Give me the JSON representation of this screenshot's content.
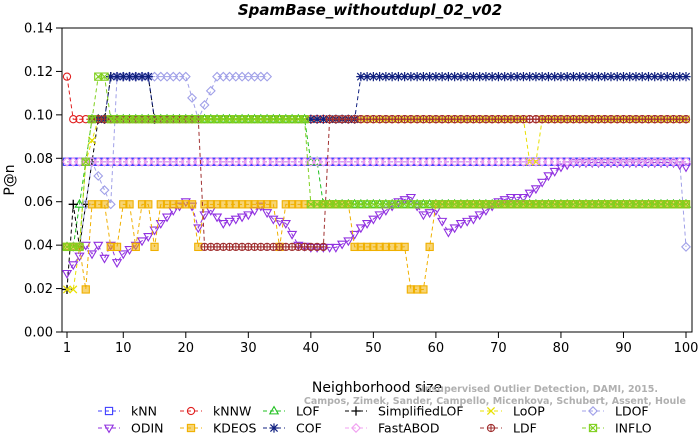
{
  "chart_data": {
    "type": "line",
    "title": "SpamBase_withoutdupl_02_v02",
    "xlabel": "Neighborhood size",
    "ylabel": "P@n",
    "xlim": [
      1,
      100
    ],
    "ylim": [
      0,
      0.14
    ],
    "xticks": [
      "1",
      "10",
      "20",
      "30",
      "40",
      "50",
      "60",
      "70",
      "80",
      "90",
      "100"
    ],
    "yticks": [
      "0.00",
      "0.02",
      "0.04",
      "0.06",
      "0.08",
      "0.10",
      "0.12",
      "0.14"
    ],
    "legend_position": "bottom",
    "grid": false,
    "watermark": {
      "line1": "Unsupervised Outlier Detection, DAMI, 2015.",
      "line2": "Campos, Zimek, Sander, Campello, Micenkova, Schubert, Assent, Houle"
    },
    "series": [
      {
        "name": "kNN",
        "color": "#4040ff",
        "marker": "square",
        "segments": [
          {
            "x": [
              1,
              100
            ],
            "y": [
              0.0784,
              0.0784
            ]
          }
        ]
      },
      {
        "name": "kNNW",
        "color": "#e02020",
        "marker": "circle",
        "segments": [
          {
            "x": [
              1,
              2,
              3,
              4,
              5,
              8,
              10,
              15,
              20,
              40,
              60,
              80,
              100
            ],
            "y": [
              0.1176,
              0.098,
              0.098,
              0.098,
              0.098,
              0.098,
              0.098,
              0.098,
              0.098,
              0.098,
              0.098,
              0.098,
              0.098
            ]
          }
        ]
      },
      {
        "name": "LOF",
        "color": "#20c020",
        "marker": "triangle",
        "segments": [
          {
            "x": [
              1,
              2,
              3,
              4,
              5,
              6,
              7,
              8,
              9,
              10,
              38,
              39,
              40,
              41,
              42,
              50,
              60,
              70,
              80,
              90,
              100
            ],
            "y": [
              0.0392,
              0.0392,
              0.0588,
              0.0784,
              0.098,
              0.098,
              0.098,
              0.098,
              0.098,
              0.098,
              0.098,
              0.098,
              0.0784,
              0.0784,
              0.0588,
              0.0588,
              0.0588,
              0.0588,
              0.0588,
              0.0588,
              0.0588
            ]
          }
        ]
      },
      {
        "name": "SimplifiedLOF",
        "color": "#000000",
        "marker": "plus",
        "segments": [
          {
            "x": [
              1,
              2,
              3,
              4,
              5,
              6,
              7,
              8,
              9,
              10,
              13,
              14,
              15
            ],
            "y": [
              0.0196,
              0.0588,
              0.0392,
              0.0588,
              0.0784,
              0.098,
              0.098,
              0.1176,
              0.1176,
              0.1176,
              0.1176,
              0.1176,
              0.098
            ]
          }
        ]
      },
      {
        "name": "LoOP",
        "color": "#e8e000",
        "marker": "x",
        "segments": [
          {
            "x": [
              1,
              2,
              3,
              4,
              6,
              8,
              10,
              20,
              40,
              60,
              74,
              75,
              76,
              77,
              100
            ],
            "y": [
              0.0196,
              0.0196,
              0.0392,
              0.0784,
              0.098,
              0.098,
              0.098,
              0.098,
              0.098,
              0.098,
              0.098,
              0.0784,
              0.0784,
              0.098,
              0.098
            ]
          }
        ]
      },
      {
        "name": "LDOF",
        "color": "#a0a0e8",
        "marker": "diamond",
        "segments": [
          {
            "x": [
              2,
              3,
              5,
              8,
              9,
              10,
              15,
              18,
              20,
              22,
              25,
              28,
              31,
              33
            ],
            "y": [
              0.0392,
              0.0392,
              0.0784,
              0.0588,
              0.1176,
              0.1176,
              0.1176,
              0.1176,
              0.1176,
              0.098,
              0.1176,
              0.1176,
              0.1176,
              0.1176
            ]
          },
          {
            "x": [
              83,
              85,
              87,
              90,
              93,
              95,
              96,
              97,
              98
            ],
            "y": [
              0.0784,
              0.0784,
              0.0784,
              0.0784,
              0.0784,
              0.0784,
              0.0784,
              0.0784,
              0.0784
            ]
          },
          {
            "x": [
              99,
              100
            ],
            "y": [
              0.0784,
              0.0392
            ]
          }
        ]
      },
      {
        "name": "ODIN",
        "color": "#9030e0",
        "marker": "triangle-down",
        "segments": [
          {
            "x": [
              1,
              2,
              3,
              4,
              5,
              6,
              7,
              8,
              9,
              10,
              12,
              14,
              16,
              18,
              20,
              21,
              22,
              23,
              24,
              26,
              28,
              30,
              32,
              34,
              36,
              38,
              40,
              42,
              44,
              46,
              48,
              50,
              52,
              54,
              56,
              58,
              60,
              62,
              64,
              66,
              68,
              70,
              72,
              74,
              76,
              78,
              80,
              82,
              84,
              86,
              88,
              90,
              92,
              94,
              96,
              98,
              100
            ],
            "y": [
              0.027,
              0.031,
              0.035,
              0.04,
              0.036,
              0.04,
              0.034,
              0.04,
              0.032,
              0.036,
              0.04,
              0.044,
              0.05,
              0.056,
              0.06,
              0.058,
              0.048,
              0.054,
              0.056,
              0.05,
              0.052,
              0.054,
              0.058,
              0.052,
              0.05,
              0.04,
              0.039,
              0.039,
              0.039,
              0.042,
              0.048,
              0.052,
              0.056,
              0.06,
              0.062,
              0.054,
              0.056,
              0.046,
              0.05,
              0.052,
              0.056,
              0.06,
              0.062,
              0.062,
              0.066,
              0.072,
              0.076,
              0.078,
              0.078,
              0.078,
              0.078,
              0.078,
              0.078,
              0.078,
              0.078,
              0.078,
              0.076
            ]
          }
        ]
      },
      {
        "name": "KDEOS",
        "color": "#f0b000",
        "marker": "square-filled",
        "segments": [
          {
            "x": [
              1,
              2,
              3,
              4,
              5,
              6,
              7,
              8,
              9,
              10,
              11,
              12,
              13,
              14,
              15,
              16,
              17,
              18,
              19,
              20,
              21,
              22,
              23,
              24,
              25,
              26,
              30,
              34,
              35,
              36,
              37,
              40,
              43,
              46,
              47,
              48,
              52,
              55,
              56,
              57,
              58,
              60,
              62,
              64,
              68,
              72,
              76,
              80,
              84,
              88,
              92,
              96,
              100
            ],
            "y": [
              0.0392,
              0.0392,
              0.0392,
              0.0196,
              0.0588,
              0.0588,
              0.0588,
              0.0392,
              0.0392,
              0.0588,
              0.0588,
              0.0392,
              0.0588,
              0.0588,
              0.0392,
              0.0588,
              0.0588,
              0.0588,
              0.0588,
              0.0588,
              0.0588,
              0.0392,
              0.0588,
              0.0588,
              0.0588,
              0.0588,
              0.0588,
              0.0588,
              0.0392,
              0.0588,
              0.0588,
              0.0588,
              0.0588,
              0.0588,
              0.0392,
              0.0392,
              0.0392,
              0.0392,
              0.0196,
              0.0196,
              0.0196,
              0.0588,
              0.0588,
              0.0588,
              0.0588,
              0.0588,
              0.0588,
              0.0588,
              0.0588,
              0.0588,
              0.0588,
              0.0588,
              0.0588
            ]
          }
        ]
      },
      {
        "name": "COF",
        "color": "#102080",
        "marker": "asterisk",
        "segments": [
          {
            "x": [
              6,
              7,
              8,
              9,
              10,
              12,
              14,
              15
            ],
            "y": [
              0.098,
              0.098,
              0.1176,
              0.1176,
              0.1176,
              0.1176,
              0.1176,
              0.098
            ]
          },
          {
            "x": [
              40,
              44,
              46,
              47,
              48,
              50,
              55,
              60,
              65,
              70,
              75,
              80,
              85,
              90,
              95,
              100
            ],
            "y": [
              0.098,
              0.098,
              0.098,
              0.098,
              0.1176,
              0.1176,
              0.1176,
              0.1176,
              0.1176,
              0.1176,
              0.1176,
              0.1176,
              0.1176,
              0.1176,
              0.1176,
              0.1176
            ]
          }
        ]
      },
      {
        "name": "FastABOD",
        "color": "#f0a0f0",
        "marker": "diamond",
        "segments": [
          {
            "x": [
              1,
              5,
              10,
              20,
              40,
              60,
              80,
              100
            ],
            "y": [
              0.0784,
              0.0784,
              0.0784,
              0.0784,
              0.0784,
              0.0784,
              0.0784,
              0.0784
            ]
          }
        ]
      },
      {
        "name": "LDF",
        "color": "#a03030",
        "marker": "circle-plus",
        "segments": [
          {
            "x": [
              5,
              8,
              10,
              15,
              20,
              22,
              23,
              24,
              26,
              28,
              30,
              32,
              34,
              36,
              38,
              40,
              42,
              43,
              44,
              46,
              50,
              60,
              70,
              80,
              90,
              100
            ],
            "y": [
              0.098,
              0.098,
              0.098,
              0.098,
              0.098,
              0.098,
              0.0392,
              0.0392,
              0.0392,
              0.0392,
              0.0392,
              0.0392,
              0.0392,
              0.0392,
              0.0392,
              0.0392,
              0.0392,
              0.098,
              0.098,
              0.098,
              0.098,
              0.098,
              0.098,
              0.098,
              0.098,
              0.098
            ]
          }
        ]
      },
      {
        "name": "INFLO",
        "color": "#80d020",
        "marker": "box-x",
        "segments": [
          {
            "x": [
              1,
              3,
              4,
              5,
              6,
              7,
              8,
              9,
              10,
              15,
              20,
              30,
              38,
              39,
              40,
              41,
              42,
              45,
              50,
              60,
              70,
              80,
              90,
              100
            ],
            "y": [
              0.0392,
              0.0392,
              0.0784,
              0.098,
              0.1176,
              0.1176,
              0.098,
              0.098,
              0.098,
              0.098,
              0.098,
              0.098,
              0.098,
              0.098,
              0.0588,
              0.0588,
              0.0588,
              0.0588,
              0.0588,
              0.0588,
              0.0588,
              0.0588,
              0.0588,
              0.0588
            ]
          }
        ]
      }
    ]
  }
}
